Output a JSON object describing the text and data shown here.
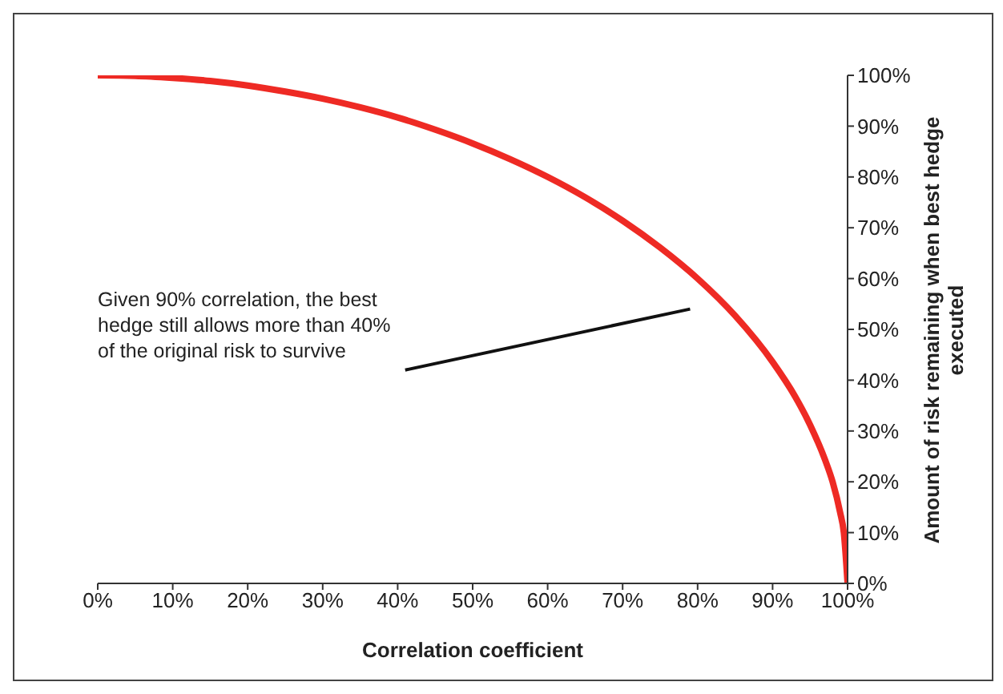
{
  "chart_data": {
    "type": "line",
    "xlabel": "Correlation coefficient",
    "ylabel": "Amount of risk remaining when best hedge executed",
    "x": [
      0,
      5,
      10,
      15,
      20,
      25,
      30,
      35,
      40,
      45,
      50,
      55,
      60,
      65,
      70,
      75,
      80,
      85,
      90,
      93,
      95,
      97,
      98,
      99,
      99.5,
      100
    ],
    "series": [
      {
        "color": "#ee2a24",
        "values": [
          100,
          99.9,
          99.5,
          98.9,
          98,
          96.8,
          95.4,
          93.7,
          91.7,
          89.3,
          86.6,
          83.5,
          80,
          76,
          71.4,
          66.1,
          60,
          52.7,
          43.6,
          36.8,
          31.2,
          24.3,
          20,
          14,
          10,
          0
        ]
      }
    ],
    "xlim": [
      0,
      100
    ],
    "xticks": [
      {
        "value": 0,
        "label": "0%"
      },
      {
        "value": 10,
        "label": "10%"
      },
      {
        "value": 20,
        "label": "20%"
      },
      {
        "value": 30,
        "label": "30%"
      },
      {
        "value": 40,
        "label": "40%"
      },
      {
        "value": 50,
        "label": "50%"
      },
      {
        "value": 60,
        "label": "60%"
      },
      {
        "value": 70,
        "label": "70%"
      },
      {
        "value": 80,
        "label": "80%"
      },
      {
        "value": 90,
        "label": "90%"
      },
      {
        "value": 100,
        "label": "100%"
      }
    ],
    "ylim": [
      0,
      100
    ],
    "yticks": [
      {
        "value": 0,
        "label": "0%"
      },
      {
        "value": 10,
        "label": "10%"
      },
      {
        "value": 20,
        "label": "20%"
      },
      {
        "value": 30,
        "label": "30%"
      },
      {
        "value": 40,
        "label": "40%"
      },
      {
        "value": 50,
        "label": "50%"
      },
      {
        "value": 60,
        "label": "60%"
      },
      {
        "value": 70,
        "label": "70%"
      },
      {
        "value": 80,
        "label": "80%"
      },
      {
        "value": 90,
        "label": "90%"
      },
      {
        "value": 100,
        "label": "100%"
      }
    ],
    "annotations": [
      "Given 90% correlation, the best hedge still allows more than 40% of the original risk to survive"
    ],
    "grid": false,
    "legend": false,
    "marker": "none",
    "line_style": "solid"
  }
}
